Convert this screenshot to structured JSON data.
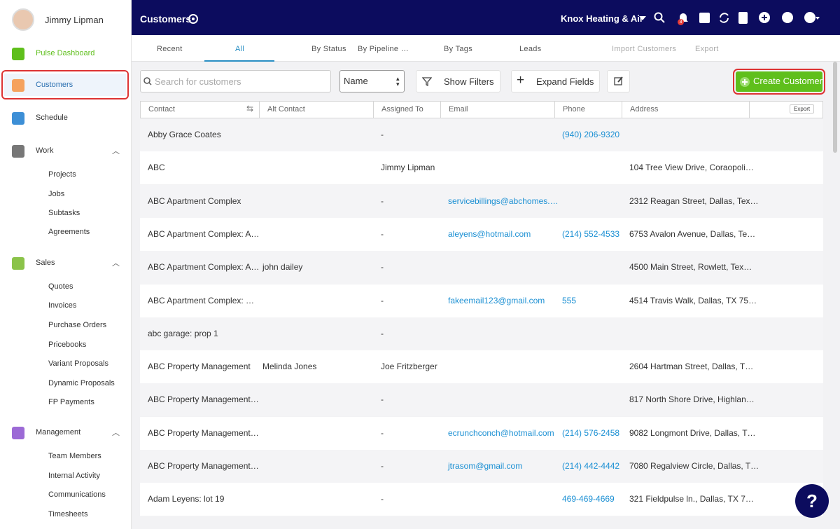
{
  "sidebar": {
    "user": "Jimmy Lipman",
    "nav": [
      {
        "label": "Pulse Dashboard",
        "level": 1,
        "icon": "pulse"
      },
      {
        "label": "Customers",
        "level": 1,
        "icon": "customers",
        "active": true
      },
      {
        "label": "Schedule",
        "level": 1,
        "icon": "schedule"
      },
      {
        "label": "Work",
        "level": 1,
        "icon": "work",
        "expanded": true
      },
      {
        "label": "Projects",
        "level": 2
      },
      {
        "label": "Jobs",
        "level": 2
      },
      {
        "label": "Subtasks",
        "level": 2
      },
      {
        "label": "Agreements",
        "level": 2
      },
      {
        "label": "Sales",
        "level": 1,
        "icon": "sales",
        "expanded": true
      },
      {
        "label": "Quotes",
        "level": 2
      },
      {
        "label": "Invoices",
        "level": 2
      },
      {
        "label": "Purchase Orders",
        "level": 2
      },
      {
        "label": "Pricebooks",
        "level": 2
      },
      {
        "label": "Variant Proposals",
        "level": 2
      },
      {
        "label": "Dynamic Proposals",
        "level": 2
      },
      {
        "label": "FP Payments",
        "level": 2
      },
      {
        "label": "Management",
        "level": 1,
        "icon": "management",
        "expanded": true
      },
      {
        "label": "Team Members",
        "level": 2
      },
      {
        "label": "Internal Activity",
        "level": 2
      },
      {
        "label": "Communications",
        "level": 2
      },
      {
        "label": "Timesheets",
        "level": 2
      }
    ]
  },
  "header": {
    "title": "Customers",
    "company": "Knox Heating & Air",
    "badge": "3"
  },
  "tabs": [
    {
      "label": "Recent"
    },
    {
      "label": "All",
      "active": true
    },
    {
      "label": "By Status"
    },
    {
      "label": "By Pipeline …"
    },
    {
      "label": "By Tags"
    },
    {
      "label": "Leads"
    },
    {
      "label": "Import Customers",
      "disabled": true
    },
    {
      "label": "Export",
      "disabled": true
    }
  ],
  "toolbar": {
    "search_placeholder": "Search for customers",
    "sort": "Name",
    "filters": "Show Filters",
    "expand": "Expand Fields",
    "create": "Create Customer"
  },
  "table": {
    "columns": [
      "Contact",
      "Alt Contact",
      "Assigned To",
      "Email",
      "Phone",
      "Address"
    ],
    "export": "Export",
    "rows": [
      {
        "contact": "Abby Grace Coates",
        "assigned": "-",
        "phone": "(940) 206-9320"
      },
      {
        "contact": "ABC",
        "assigned": "Jimmy Lipman",
        "address": "104 Tree View Drive, Coraopoli…"
      },
      {
        "contact": "ABC Apartment Complex",
        "assigned": "-",
        "email": "servicebillings@abchomes.…",
        "address": "2312 Reagan Street, Dallas, Tex…"
      },
      {
        "contact": "ABC Apartment Complex: A…",
        "assigned": "-",
        "email": "aleyens@hotmail.com",
        "phone": "(214) 552-4533",
        "address": "6753 Avalon Avenue, Dallas, Te…"
      },
      {
        "contact": "ABC Apartment Complex: A…",
        "alt_contact": "john dailey",
        "assigned": "-",
        "address": "4500 Main Street, Rowlett, Tex…"
      },
      {
        "contact": "ABC Apartment Complex: …",
        "assigned": "-",
        "email": "fakeemail123@gmail.com",
        "phone": "555",
        "address": "4514 Travis Walk, Dallas, TX 75…"
      },
      {
        "contact": "abc garage: prop 1",
        "assigned": "-"
      },
      {
        "contact": "ABC Property Management",
        "alt_contact": "Melinda Jones",
        "assigned": "Joe Fritzberger",
        "address": "2604 Hartman Street, Dallas, T…"
      },
      {
        "contact": "ABC Property Management…",
        "assigned": "-",
        "address": "817 North Shore Drive, Highlan…"
      },
      {
        "contact": "ABC Property Management…",
        "assigned": "-",
        "email": "ecrunchconch@hotmail.com",
        "phone": "(214) 576-2458",
        "address": "9082 Longmont Drive, Dallas, T…"
      },
      {
        "contact": "ABC Property Management…",
        "assigned": "-",
        "email": "jtrasom@gmail.com",
        "phone": "(214) 442-4442",
        "address": "7080 Regalview Circle, Dallas, T…"
      },
      {
        "contact": "Adam Leyens: lot 19",
        "assigned": "-",
        "phone": "469-469-4669",
        "address": "321 Fieldpulse ln., Dallas, TX 7…"
      }
    ]
  }
}
